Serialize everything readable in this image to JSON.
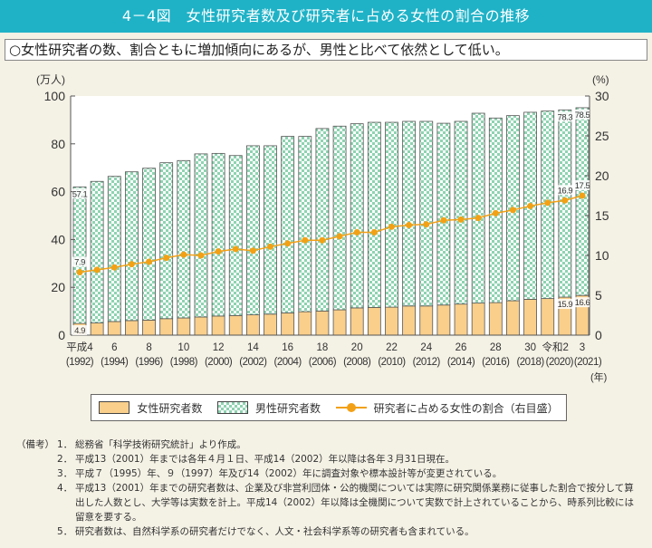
{
  "header": {
    "title": "4－4図　女性研究者数及び研究者に占める女性の割合の推移"
  },
  "summary": "○女性研究者の数、割合ともに増加傾向にあるが、男性と比べて依然として低い。",
  "colors": {
    "header": "#1fb2c7",
    "female": "#f9cf8b",
    "male": "#8ed3b1",
    "line": "#f2a116"
  },
  "chart_data": {
    "type": "bar",
    "stacked": true,
    "left_axis": {
      "label": "(万人)",
      "ylim": [
        0,
        100
      ],
      "ticks": [
        "0",
        "20",
        "40",
        "60",
        "80",
        "100"
      ]
    },
    "right_axis": {
      "label": "(%)",
      "ylim": [
        0,
        30
      ],
      "ticks": [
        "0",
        "5",
        "10",
        "15",
        "20",
        "25",
        "30"
      ]
    },
    "xlabel": "(年)",
    "years": [
      1992,
      1993,
      1994,
      1995,
      1996,
      1997,
      1998,
      1999,
      2000,
      2001,
      2002,
      2003,
      2004,
      2005,
      2006,
      2007,
      2008,
      2009,
      2010,
      2011,
      2012,
      2013,
      2014,
      2015,
      2016,
      2017,
      2018,
      2019,
      2020,
      2021
    ],
    "x_tick_labels": [
      {
        "index": 0,
        "top": "平成4",
        "bottom": "(1992)"
      },
      {
        "index": 2,
        "top": "6",
        "bottom": "(1994)"
      },
      {
        "index": 4,
        "top": "8",
        "bottom": "(1996)"
      },
      {
        "index": 6,
        "top": "10",
        "bottom": "(1998)"
      },
      {
        "index": 8,
        "top": "12",
        "bottom": "(2000)"
      },
      {
        "index": 10,
        "top": "14",
        "bottom": "(2002)"
      },
      {
        "index": 12,
        "top": "16",
        "bottom": "(2004)"
      },
      {
        "index": 14,
        "top": "18",
        "bottom": "(2006)"
      },
      {
        "index": 16,
        "top": "20",
        "bottom": "(2008)"
      },
      {
        "index": 18,
        "top": "22",
        "bottom": "(2010)"
      },
      {
        "index": 20,
        "top": "24",
        "bottom": "(2012)"
      },
      {
        "index": 22,
        "top": "26",
        "bottom": "(2014)"
      },
      {
        "index": 24,
        "top": "28",
        "bottom": "(2016)"
      },
      {
        "index": 26,
        "top": "30",
        "bottom": "(2018)"
      },
      {
        "index": 28,
        "top": "令和2",
        "bottom": "(2020)"
      },
      {
        "index": 29,
        "top": "3",
        "bottom": "(2021)"
      }
    ],
    "series": [
      {
        "name": "女性研究者数",
        "axis": "left",
        "values": [
          4.9,
          5.1,
          5.7,
          6.1,
          6.3,
          6.9,
          7.2,
          7.6,
          8.0,
          8.2,
          8.5,
          8.8,
          9.3,
          9.8,
          10.1,
          10.6,
          11.4,
          11.6,
          11.7,
          12.2,
          12.2,
          12.6,
          13.0,
          13.4,
          13.6,
          14.4,
          15.0,
          15.3,
          15.9,
          16.6
        ]
      },
      {
        "name": "男性研究者数",
        "axis": "left",
        "values": [
          57.1,
          59.2,
          60.7,
          62.2,
          63.5,
          65.2,
          65.8,
          68.2,
          68.0,
          66.9,
          70.7,
          70.4,
          73.8,
          73.3,
          76.3,
          76.8,
          77.0,
          77.4,
          77.3,
          77.2,
          77.2,
          76.0,
          76.4,
          79.4,
          77.2,
          77.4,
          78.2,
          78.4,
          78.3,
          78.5
        ]
      },
      {
        "name": "研究者に占める女性の割合（右目盛）",
        "axis": "right",
        "type": "line",
        "values": [
          7.9,
          8.2,
          8.5,
          8.9,
          9.2,
          9.7,
          10.1,
          10.0,
          10.5,
          10.8,
          10.6,
          11.1,
          11.5,
          11.9,
          11.9,
          12.4,
          12.9,
          12.9,
          13.6,
          13.8,
          13.9,
          14.4,
          14.5,
          14.7,
          15.3,
          15.7,
          16.2,
          16.6,
          16.9,
          17.5
        ]
      }
    ],
    "data_labels": [
      {
        "series": 0,
        "index": 0,
        "text": "4.9"
      },
      {
        "series": 1,
        "index": 0,
        "text": "57.1"
      },
      {
        "series": 2,
        "index": 0,
        "text": "7.9"
      },
      {
        "series": 0,
        "index": 28,
        "text": "15.9"
      },
      {
        "series": 1,
        "index": 28,
        "text": "78.3"
      },
      {
        "series": 2,
        "index": 28,
        "text": "16.9"
      },
      {
        "series": 0,
        "index": 29,
        "text": "16.6"
      },
      {
        "series": 1,
        "index": 29,
        "text": "78.5"
      },
      {
        "series": 2,
        "index": 29,
        "text": "17.5"
      }
    ],
    "legend": [
      "女性研究者数",
      "男性研究者数",
      "研究者に占める女性の割合（右目盛）"
    ],
    "legend_position": "bottom",
    "grid": false
  },
  "notes": {
    "head": "（備考）",
    "items": [
      {
        "num": "1．",
        "text": "総務省「科学技術研究統計」より作成。"
      },
      {
        "num": "2．",
        "text": "平成13（2001）年までは各年４月１日、平成14（2002）年以降は各年３月31日現在。"
      },
      {
        "num": "3．",
        "text": "平成７（1995）年、９（1997）年及び14（2002）年に調査対象や標本設計等が変更されている。"
      },
      {
        "num": "4．",
        "text": "平成13（2001）年までの研究者数は、企業及び非営利団体・公的機関については実際に研究関係業務に従事した割合で按分して算出した人数とし、大学等は実数を計上。平成14（2002）年以降は全機関について実数で計上されていることから、時系列比較には留意を要する。"
      },
      {
        "num": "5．",
        "text": "研究者数は、自然科学系の研究者だけでなく、人文・社会科学系等の研究者も含まれている。"
      }
    ]
  }
}
